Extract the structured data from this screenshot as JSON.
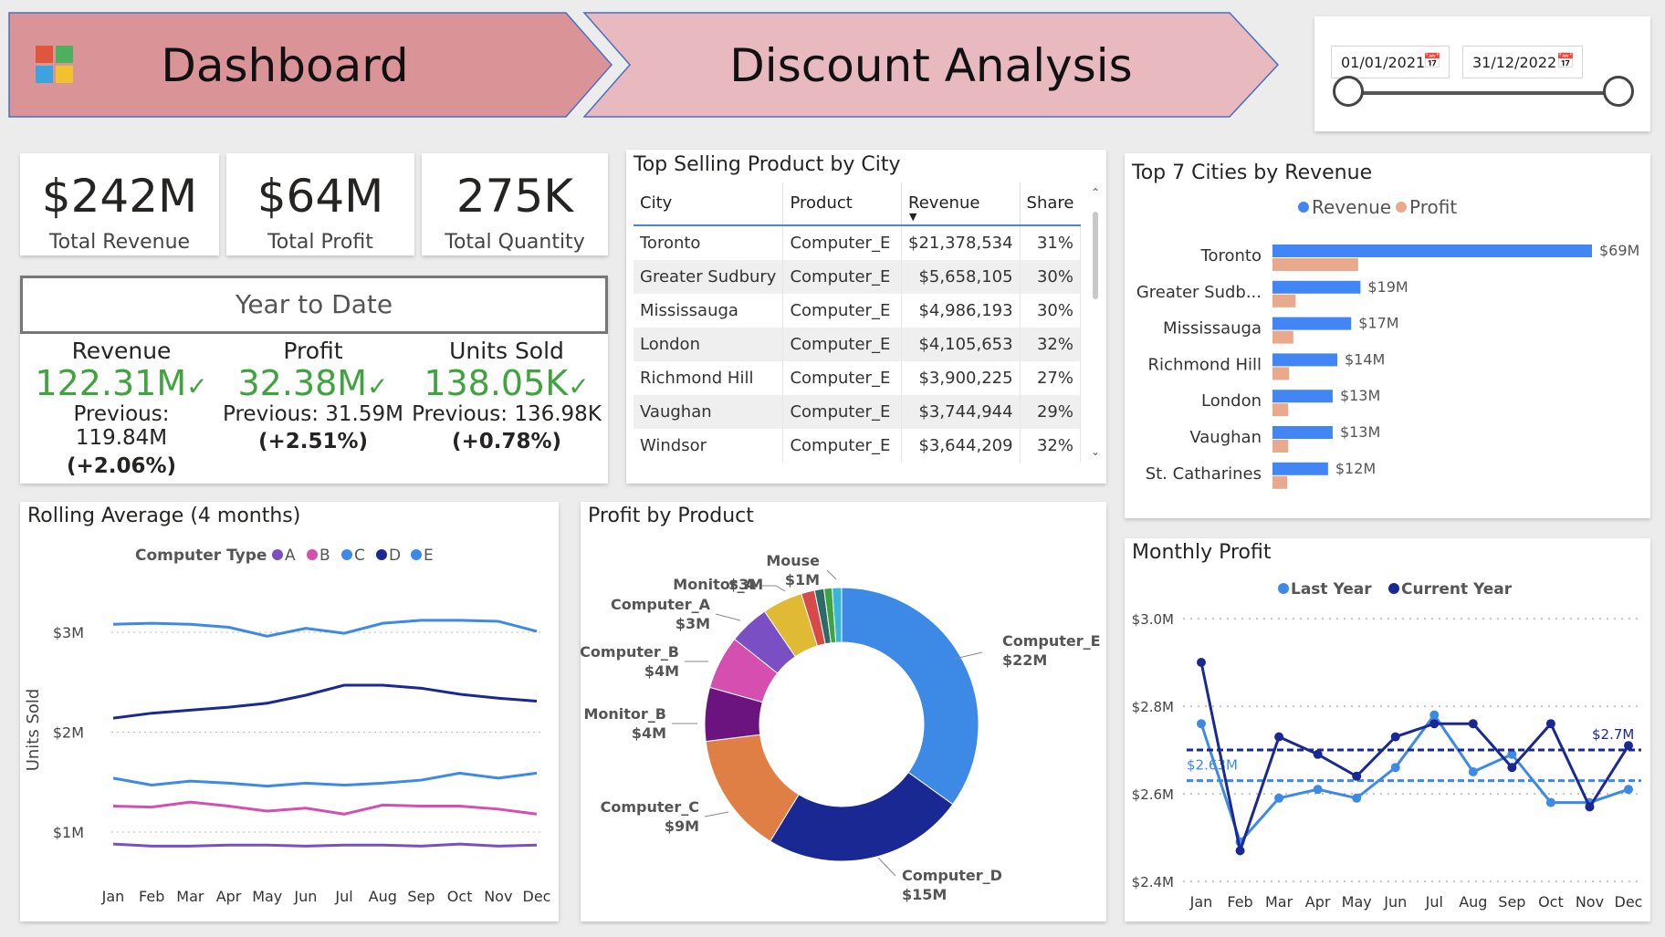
{
  "header": {
    "title_left": "Dashboard",
    "title_right": "Discount Analysis"
  },
  "date_filter": {
    "start": "01/01/2021",
    "end": "31/12/2022"
  },
  "colors": {
    "revenue": "#4285f4",
    "profit": "#e8a98c",
    "last_year": "#3c8ae6",
    "current_year": "#1a2894",
    "positive": "#3fa33f"
  },
  "kpis": [
    {
      "value": "$242M",
      "label": "Total Revenue"
    },
    {
      "value": "$64M",
      "label": "Total Profit"
    },
    {
      "value": "275K",
      "label": "Total Quantity"
    }
  ],
  "ytd": {
    "title": "Year to Date",
    "metrics": [
      {
        "label": "Revenue",
        "value": "122.31M",
        "previous": "Previous: 119.84M",
        "change": "(+2.06%)"
      },
      {
        "label": "Profit",
        "value": "32.38M",
        "previous": "Previous: 31.59M",
        "change": "(+2.51%)"
      },
      {
        "label": "Units Sold",
        "value": "138.05K",
        "previous": "Previous: 136.98K",
        "change": "(+0.78%)"
      }
    ]
  },
  "top_product_table": {
    "title": "Top Selling Product by City",
    "columns": [
      "City",
      "Product",
      "Revenue",
      "Share"
    ],
    "rows": [
      [
        "Toronto",
        "Computer_E",
        "$21,378,534",
        "31%"
      ],
      [
        "Greater Sudbury",
        "Computer_E",
        "$5,658,105",
        "30%"
      ],
      [
        "Mississauga",
        "Computer_E",
        "$4,986,193",
        "30%"
      ],
      [
        "London",
        "Computer_E",
        "$4,105,653",
        "32%"
      ],
      [
        "Richmond Hill",
        "Computer_E",
        "$3,900,225",
        "27%"
      ],
      [
        "Vaughan",
        "Computer_E",
        "$3,744,944",
        "29%"
      ],
      [
        "Windsor",
        "Computer_E",
        "$3,644,209",
        "32%"
      ]
    ]
  },
  "chart_data": [
    {
      "type": "bar",
      "title": "Top 7 Cities by Revenue",
      "orientation": "horizontal",
      "categories": [
        "Toronto",
        "Greater Sudb...",
        "Mississauga",
        "Richmond Hill",
        "London",
        "Vaughan",
        "St. Catharines"
      ],
      "series": [
        {
          "name": "Revenue",
          "values": [
            69,
            19,
            17,
            14,
            13,
            13,
            12
          ],
          "labels": [
            "$69M",
            "$19M",
            "$17M",
            "$14M",
            "$13M",
            "$13M",
            "$12M"
          ]
        },
        {
          "name": "Profit",
          "values": [
            18.5,
            5,
            4.5,
            3.6,
            3.4,
            3.4,
            3.2
          ]
        }
      ],
      "legend": "top"
    },
    {
      "type": "line",
      "title": "Rolling Average (4 months)",
      "legend_title": "Computer Type",
      "ylabel": "Units Sold",
      "categories": [
        "Jan",
        "Feb",
        "Mar",
        "Apr",
        "May",
        "Jun",
        "Jul",
        "Aug",
        "Sep",
        "Oct",
        "Nov",
        "Dec"
      ],
      "yticks": [
        "$1M",
        "$2M",
        "$3M"
      ],
      "ylim": [
        0.8,
        3.3
      ],
      "series": [
        {
          "name": "A",
          "color": "#7a4fc4",
          "values": [
            0.88,
            0.86,
            0.86,
            0.87,
            0.87,
            0.86,
            0.87,
            0.87,
            0.86,
            0.88,
            0.86,
            0.87
          ]
        },
        {
          "name": "B",
          "color": "#d44fb0",
          "values": [
            1.26,
            1.25,
            1.3,
            1.26,
            1.21,
            1.24,
            1.18,
            1.27,
            1.26,
            1.26,
            1.23,
            1.18
          ]
        },
        {
          "name": "C",
          "color": "#3c8ae6",
          "values": [
            3.08,
            3.09,
            3.08,
            3.05,
            2.96,
            3.04,
            2.99,
            3.09,
            3.12,
            3.12,
            3.11,
            3.01
          ]
        },
        {
          "name": "D",
          "color": "#1a2894",
          "values": [
            2.14,
            2.19,
            2.22,
            2.25,
            2.29,
            2.37,
            2.47,
            2.47,
            2.44,
            2.38,
            2.34,
            2.31
          ]
        },
        {
          "name": "E",
          "color": "#3c8ae6",
          "values": [
            1.54,
            1.47,
            1.51,
            1.49,
            1.46,
            1.49,
            1.47,
            1.49,
            1.52,
            1.59,
            1.54,
            1.59
          ]
        }
      ]
    },
    {
      "type": "pie",
      "title": "Profit by Product",
      "donut": true,
      "slices": [
        {
          "name": "Computer_E",
          "value": 22,
          "label": "$22M",
          "color": "#3c8ae6"
        },
        {
          "name": "Computer_D",
          "value": 15,
          "label": "$15M",
          "color": "#1a2894"
        },
        {
          "name": "Computer_C",
          "value": 9,
          "label": "$9M",
          "color": "#e07f45"
        },
        {
          "name": "Monitor_B",
          "value": 4,
          "label": "$4M",
          "color": "#6b1480"
        },
        {
          "name": "Computer_B",
          "value": 4,
          "label": "$4M",
          "color": "#d44fb0"
        },
        {
          "name": "Computer_A",
          "value": 3,
          "label": "$3M",
          "color": "#7a4fc4"
        },
        {
          "name": "Monitor_A",
          "value": 3,
          "label": "$3M",
          "color": "#e0b935"
        },
        {
          "name": "",
          "value": 1,
          "label": "",
          "color": "#d64a4a"
        },
        {
          "name": "",
          "value": 0.7,
          "label": "",
          "color": "#2d6a6a"
        },
        {
          "name": "",
          "value": 0.6,
          "label": "",
          "color": "#3ea33e"
        },
        {
          "name": "Mouse",
          "value": 0.7,
          "label": "$1M",
          "color": "#38b6d8"
        }
      ]
    },
    {
      "type": "line",
      "title": "Monthly Profit",
      "categories": [
        "Jan",
        "Feb",
        "Mar",
        "Apr",
        "May",
        "Jun",
        "Jul",
        "Aug",
        "Sep",
        "Oct",
        "Nov",
        "Dec"
      ],
      "yticks": [
        "$2.4M",
        "$2.6M",
        "$2.8M",
        "$3.0M"
      ],
      "ylim": [
        2.4,
        3.0
      ],
      "series": [
        {
          "name": "Last Year",
          "color": "#3c8ae6",
          "values": [
            2.76,
            2.49,
            2.59,
            2.61,
            2.59,
            2.66,
            2.78,
            2.65,
            2.69,
            2.58,
            2.58,
            2.61
          ],
          "average": 2.63,
          "average_label": "$2.63M"
        },
        {
          "name": "Current Year",
          "color": "#1a2894",
          "values": [
            2.9,
            2.47,
            2.73,
            2.69,
            2.64,
            2.73,
            2.76,
            2.76,
            2.66,
            2.76,
            2.57,
            2.71
          ],
          "average": 2.7,
          "average_label": "$2.7M"
        }
      ]
    }
  ]
}
